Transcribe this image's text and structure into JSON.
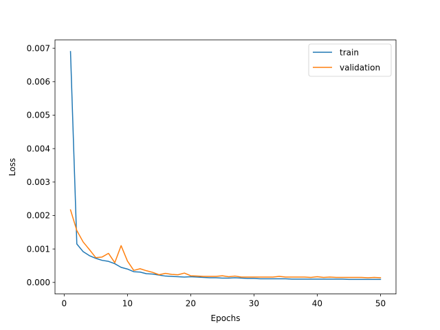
{
  "chart_data": {
    "type": "line",
    "title": "",
    "xlabel": "Epochs",
    "ylabel": "Loss",
    "xlim": [
      -1.45,
      52.45
    ],
    "ylim": [
      -0.000345,
      0.00725
    ],
    "xticks": [
      {
        "value": 0,
        "label": "0"
      },
      {
        "value": 10,
        "label": "10"
      },
      {
        "value": 20,
        "label": "20"
      },
      {
        "value": 30,
        "label": "30"
      },
      {
        "value": 40,
        "label": "40"
      },
      {
        "value": 50,
        "label": "50"
      }
    ],
    "yticks": [
      {
        "value": 0.0,
        "label": "0.000"
      },
      {
        "value": 0.001,
        "label": "0.001"
      },
      {
        "value": 0.002,
        "label": "0.002"
      },
      {
        "value": 0.003,
        "label": "0.003"
      },
      {
        "value": 0.004,
        "label": "0.004"
      },
      {
        "value": 0.005,
        "label": "0.005"
      },
      {
        "value": 0.006,
        "label": "0.006"
      },
      {
        "value": 0.007,
        "label": "0.007"
      }
    ],
    "grid": false,
    "legend_position": "top-right",
    "x": [
      1,
      2,
      3,
      4,
      5,
      6,
      7,
      8,
      9,
      10,
      11,
      12,
      13,
      14,
      15,
      16,
      17,
      18,
      19,
      20,
      21,
      22,
      23,
      24,
      25,
      26,
      27,
      28,
      29,
      30,
      31,
      32,
      33,
      34,
      35,
      36,
      37,
      38,
      39,
      40,
      41,
      42,
      43,
      44,
      45,
      46,
      47,
      48,
      49,
      50
    ],
    "series": [
      {
        "name": "train",
        "color": "#1f77b4",
        "values": [
          0.0069,
          0.00115,
          0.00092,
          0.0008,
          0.00072,
          0.00066,
          0.00063,
          0.00056,
          0.00045,
          0.0004,
          0.00032,
          0.00031,
          0.00026,
          0.00025,
          0.00022,
          0.00019,
          0.00018,
          0.00017,
          0.00016,
          0.00017,
          0.00016,
          0.00015,
          0.00014,
          0.00014,
          0.00013,
          0.00013,
          0.00014,
          0.00013,
          0.00012,
          0.00012,
          0.00011,
          0.00011,
          0.00011,
          0.00011,
          0.00011,
          0.0001,
          0.0001,
          0.0001,
          0.0001,
          0.0001,
          0.0001,
          0.0001,
          0.0001,
          0.0001,
          9e-05,
          9e-05,
          9e-05,
          9e-05,
          9e-05,
          9e-05
        ]
      },
      {
        "name": "validation",
        "color": "#ff7f0e",
        "values": [
          0.00217,
          0.00155,
          0.00121,
          0.00098,
          0.00074,
          0.00076,
          0.00087,
          0.00059,
          0.0011,
          0.00064,
          0.00036,
          0.00041,
          0.00035,
          0.0003,
          0.00023,
          0.00027,
          0.00024,
          0.00023,
          0.00028,
          0.0002,
          0.00019,
          0.00018,
          0.00018,
          0.00018,
          0.0002,
          0.00017,
          0.00019,
          0.00016,
          0.00016,
          0.00016,
          0.00016,
          0.00016,
          0.00016,
          0.00018,
          0.00016,
          0.00016,
          0.00016,
          0.00016,
          0.00015,
          0.00017,
          0.00015,
          0.00016,
          0.00015,
          0.00015,
          0.00015,
          0.00015,
          0.00015,
          0.00014,
          0.00015,
          0.00014
        ]
      }
    ]
  }
}
